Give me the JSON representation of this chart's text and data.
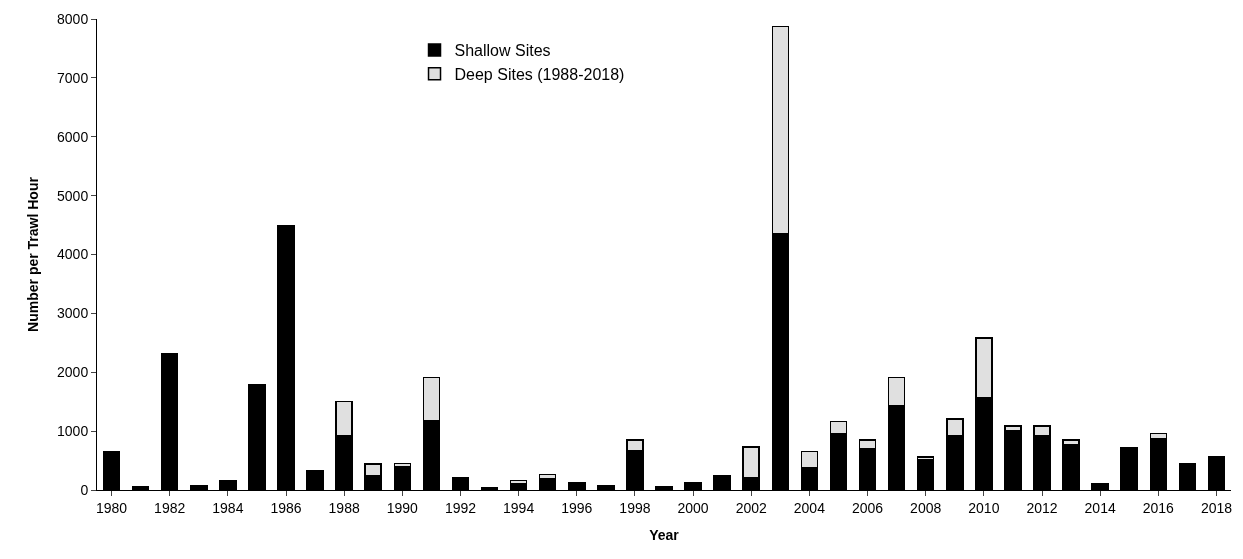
{
  "chart_data": {
    "type": "bar",
    "stacked": true,
    "xlabel": "Year",
    "ylabel": "Number per Trawl Hour",
    "categories": [
      "1980",
      null,
      "1982",
      null,
      "1984",
      null,
      "1986",
      null,
      "1988",
      null,
      "1990",
      null,
      "1992",
      null,
      "1994",
      null,
      "1996",
      null,
      "1998",
      null,
      "2000",
      null,
      "2002",
      null,
      "2004",
      null,
      "2006",
      null,
      "2008",
      null,
      "2010",
      null,
      "2012",
      null,
      "2014",
      null,
      "2016",
      null,
      "2018"
    ],
    "series": [
      {
        "name": "Shallow Sites",
        "color": "#000000",
        "values": [
          650,
          60,
          2310,
          80,
          160,
          1780,
          4480,
          330,
          930,
          250,
          400,
          1180,
          200,
          30,
          110,
          190,
          120,
          75,
          660,
          60,
          90,
          250,
          200,
          4350,
          380,
          960,
          700,
          1430,
          520,
          930,
          1560,
          1010,
          920,
          770,
          110,
          680,
          870,
          440,
          570
        ]
      },
      {
        "name": "Deep Sites (1988-2018)",
        "color": "#e0e0e0",
        "values": [
          null,
          null,
          null,
          null,
          null,
          null,
          null,
          null,
          570,
          190,
          50,
          730,
          null,
          null,
          50,
          70,
          null,
          null,
          190,
          null,
          30,
          null,
          530,
          3520,
          270,
          200,
          150,
          480,
          40,
          280,
          1020,
          80,
          170,
          80,
          null,
          30,
          90,
          null,
          null
        ]
      }
    ],
    "ylim": [
      0,
      8000
    ],
    "yticks": [
      0,
      1000,
      2000,
      3000,
      4000,
      5000,
      6000,
      7000,
      8000
    ],
    "grid": false,
    "legend": "top"
  }
}
